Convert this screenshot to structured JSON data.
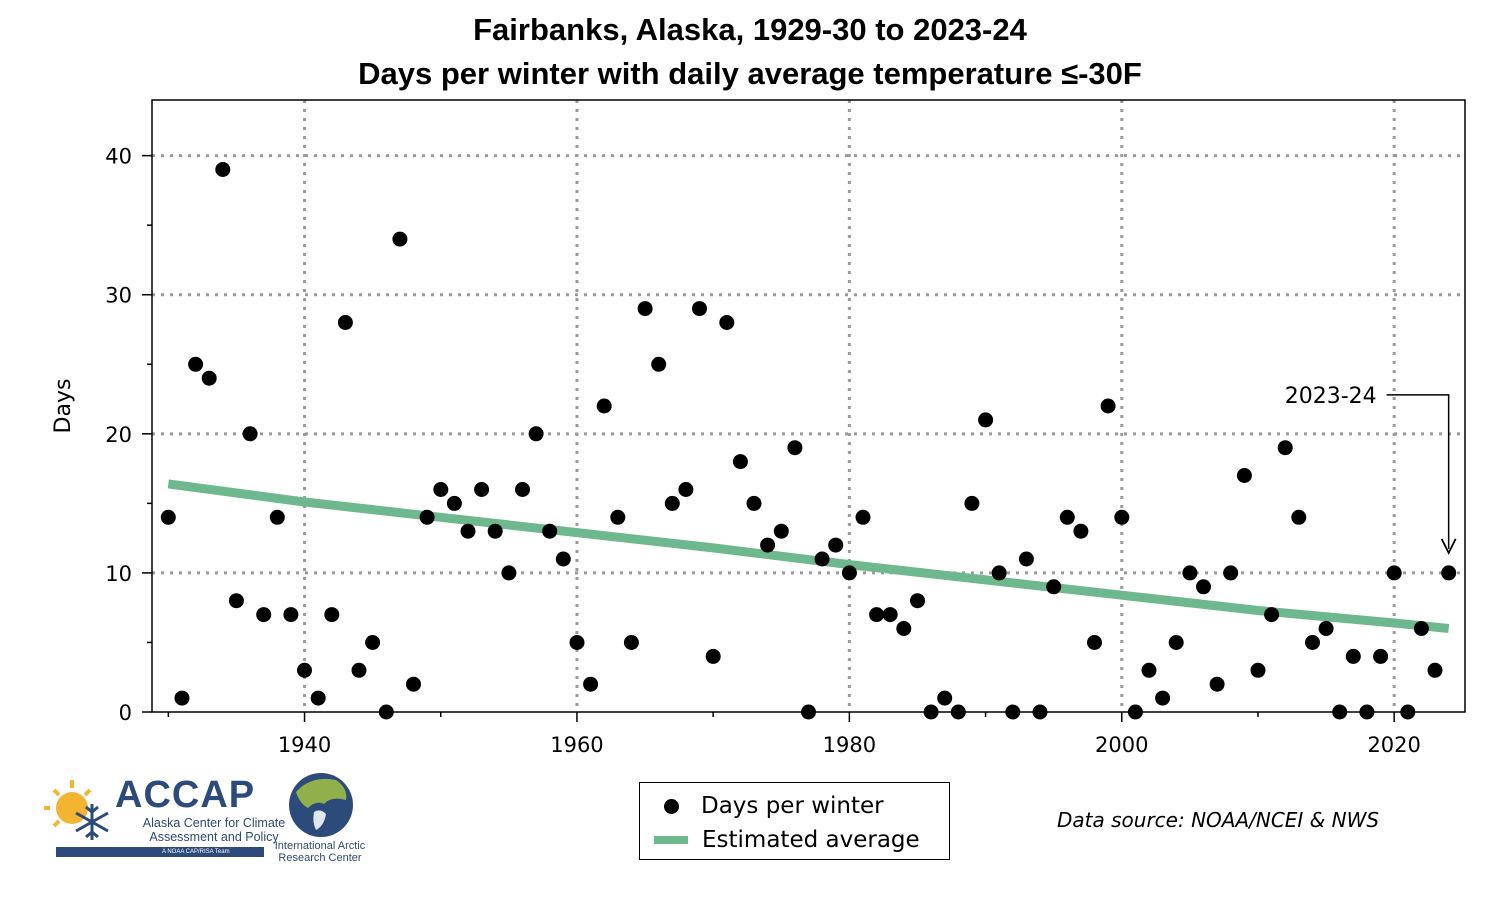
{
  "chart_data": {
    "type": "scatter",
    "title": "Fairbanks, Alaska, 1929-30 to 2023-24",
    "subtitle": "Days per winter with daily average temperature ≤-30F",
    "xlabel": "",
    "ylabel": "Days",
    "xlim": [
      1928.8,
      2025.2
    ],
    "ylim": [
      0,
      44
    ],
    "xticks": [
      1940,
      1960,
      1980,
      2000,
      2020
    ],
    "yticks": [
      0,
      10,
      20,
      30,
      40
    ],
    "grid": true,
    "legend_position": "bottom",
    "series": [
      {
        "name": "Days per winter",
        "kind": "scatter",
        "color": "#000000",
        "x": [
          1930,
          1931,
          1932,
          1933,
          1934,
          1935,
          1936,
          1937,
          1938,
          1939,
          1940,
          1941,
          1942,
          1943,
          1944,
          1945,
          1946,
          1947,
          1948,
          1949,
          1950,
          1951,
          1952,
          1953,
          1954,
          1955,
          1956,
          1957,
          1958,
          1959,
          1960,
          1961,
          1962,
          1963,
          1964,
          1965,
          1966,
          1967,
          1968,
          1969,
          1970,
          1971,
          1972,
          1973,
          1974,
          1975,
          1976,
          1977,
          1978,
          1979,
          1980,
          1981,
          1982,
          1983,
          1984,
          1985,
          1986,
          1987,
          1988,
          1989,
          1990,
          1991,
          1992,
          1993,
          1994,
          1995,
          1996,
          1997,
          1998,
          1999,
          2000,
          2001,
          2002,
          2003,
          2004,
          2005,
          2006,
          2007,
          2008,
          2009,
          2010,
          2011,
          2012,
          2013,
          2014,
          2015,
          2016,
          2017,
          2018,
          2019,
          2020,
          2021,
          2022,
          2023,
          2024
        ],
        "y": [
          14,
          1,
          25,
          24,
          39,
          8,
          20,
          7,
          14,
          7,
          3,
          1,
          7,
          28,
          3,
          5,
          0,
          34,
          2,
          14,
          16,
          15,
          13,
          16,
          13,
          10,
          16,
          20,
          13,
          11,
          5,
          2,
          22,
          14,
          5,
          29,
          25,
          15,
          16,
          29,
          4,
          28,
          18,
          15,
          12,
          13,
          19,
          0,
          11,
          12,
          10,
          14,
          7,
          7,
          6,
          8,
          0,
          1,
          0,
          15,
          21,
          10,
          0,
          11,
          0,
          9,
          14,
          13,
          5,
          22,
          14,
          0,
          3,
          1,
          5,
          10,
          9,
          2,
          10,
          17,
          3,
          7,
          19,
          14,
          5,
          6,
          0,
          4,
          0,
          4,
          10,
          0,
          6,
          3,
          10
        ]
      },
      {
        "name": "Estimated average",
        "kind": "line",
        "color": "#6db88d",
        "x": [
          1930,
          1940,
          1950,
          1960,
          1970,
          1980,
          1990,
          2000,
          2010,
          2020,
          2024
        ],
        "y": [
          16.4,
          15.1,
          14.0,
          12.9,
          11.8,
          10.6,
          9.5,
          8.4,
          7.3,
          6.4,
          6.0
        ]
      }
    ],
    "annotation": {
      "text": "2023-24",
      "x": 2024,
      "y": 10
    }
  },
  "source_text": "Data source: NOAA/NCEI & NWS",
  "logos": {
    "accap_name": "ACCAP",
    "accap_line1": "Alaska Center for Climate",
    "accap_line2": "Assessment and Policy",
    "accap_tag": "A NOAA CAP/RISA Team",
    "iarc_line1": "International Arctic",
    "iarc_line2": "Research Center"
  }
}
